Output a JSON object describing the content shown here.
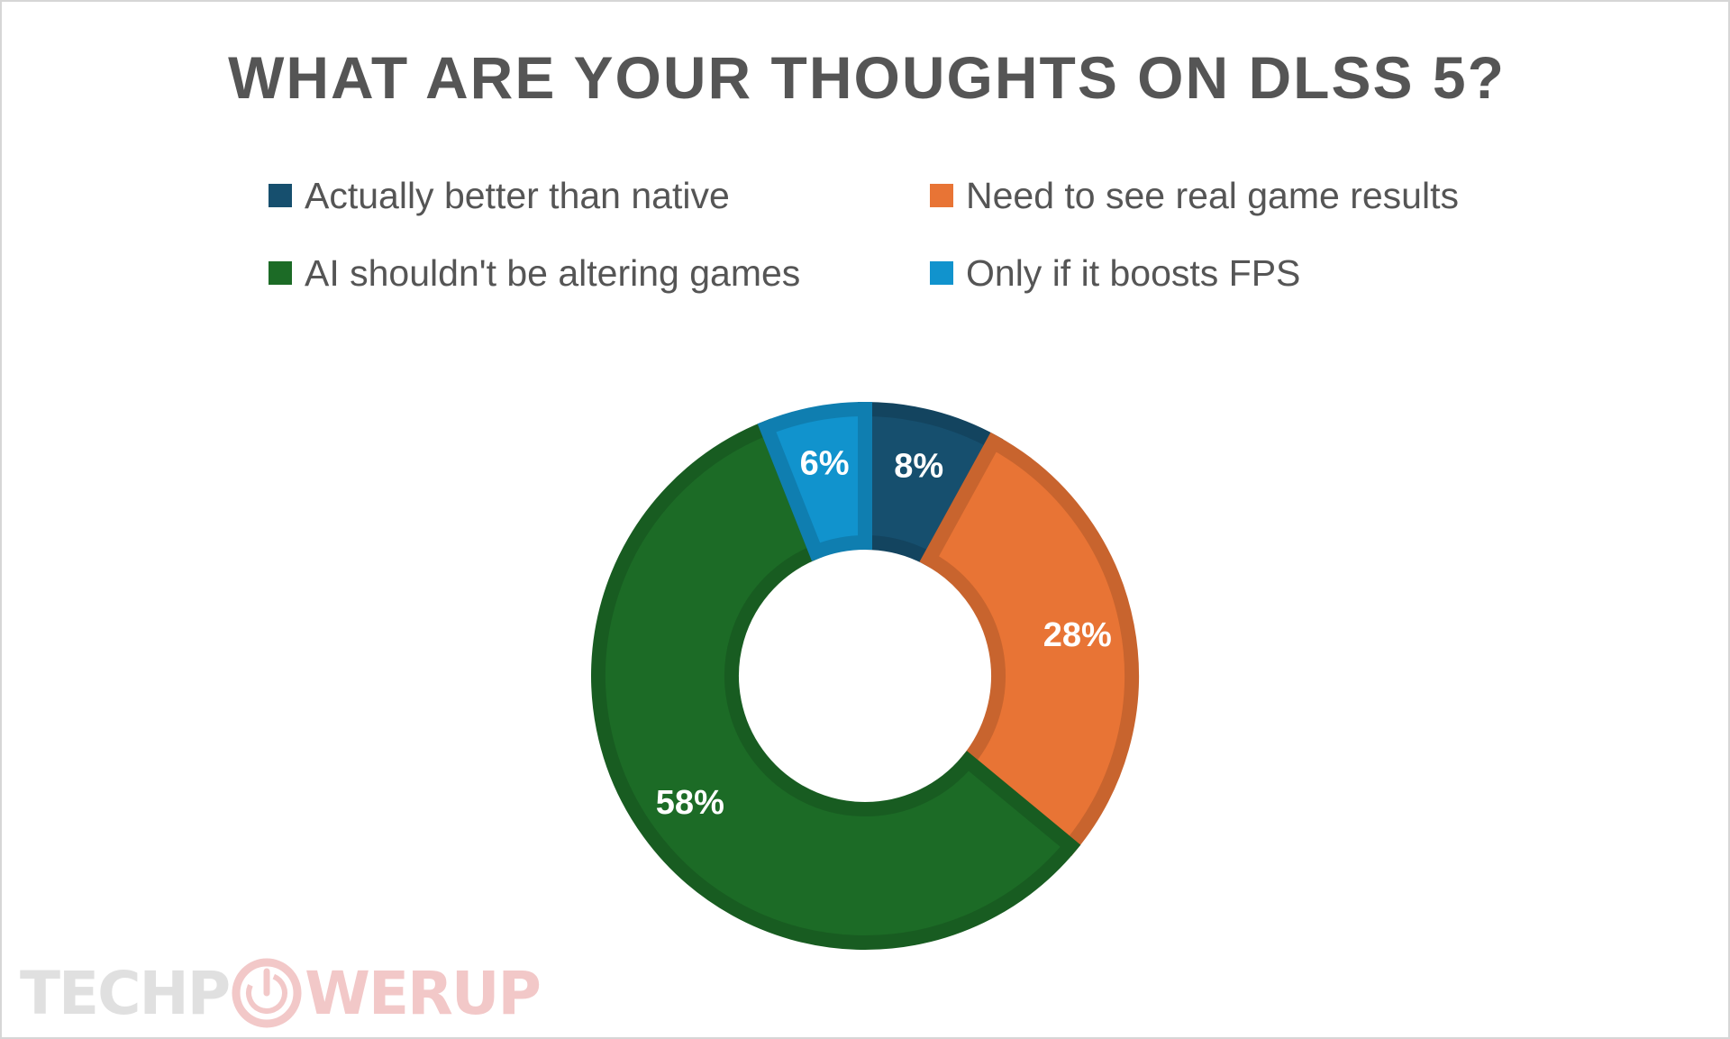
{
  "chart_data": {
    "type": "pie",
    "variant": "donut",
    "title": "WHAT ARE YOUR THOUGHTS ON DLSS 5?",
    "legend_placement": "top",
    "slices": [
      {
        "label": "Actually better than native",
        "value": 8,
        "value_label": "8%",
        "color": "#164f6e"
      },
      {
        "label": "Need to see real game results",
        "value": 28,
        "value_label": "28%",
        "color": "#e87435"
      },
      {
        "label": "AI shouldn't be altering games",
        "value": 58,
        "value_label": "58%",
        "color": "#1c6b26"
      },
      {
        "label": "Only if it boosts FPS",
        "value": 6,
        "value_label": "6%",
        "color": "#1193cd"
      }
    ]
  },
  "watermark": {
    "brand_left": "TECHP",
    "brand_right": "WERUP",
    "icon": "power-icon"
  }
}
